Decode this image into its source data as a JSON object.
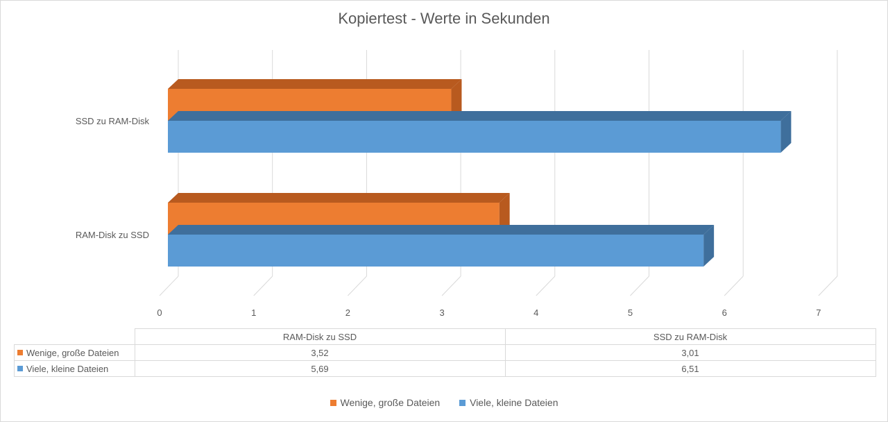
{
  "chart_data": {
    "type": "bar",
    "orientation": "horizontal",
    "three_d": true,
    "title": "Kopiertest - Werte in Sekunden",
    "categories": [
      "RAM-Disk zu SSD",
      "SSD zu RAM-Disk"
    ],
    "series": [
      {
        "name": "Wenige, große Dateien",
        "values": [
          3.52,
          3.01
        ],
        "value_labels": [
          "3,52",
          "3,01"
        ],
        "color": "#ED7D31",
        "side_color": "#B85A1F"
      },
      {
        "name": "Viele, kleine Dateien",
        "values": [
          5.69,
          6.51
        ],
        "value_labels": [
          "5,69",
          "6,51"
        ],
        "color": "#5B9BD5",
        "side_color": "#3F6F9C"
      }
    ],
    "xlim": [
      0,
      7
    ],
    "ticks": [
      "0",
      "1",
      "2",
      "3",
      "4",
      "5",
      "6",
      "7"
    ],
    "grid": true,
    "data_table": true,
    "legend_position": "bottom"
  }
}
